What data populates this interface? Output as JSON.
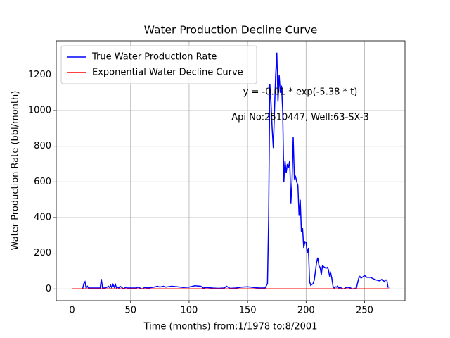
{
  "chart_data": {
    "type": "line",
    "title": "Water Production Decline Curve",
    "x_label": "Time (months) from:1/1978 to:8/2001",
    "y_label": "Water Production Rate (bbl/month)",
    "annotations": [
      "y = -0.01 * exp(-5.38 * t)",
      "Api No:2510447, Well:63-SX-3"
    ],
    "series": [
      {
        "name": "True Water Production Rate",
        "color": "#0000ff",
        "x": [
          0,
          5,
          9,
          10,
          11,
          12,
          13,
          14,
          18,
          22,
          24,
          25,
          26,
          28,
          30,
          31,
          32,
          33,
          34,
          35,
          36,
          37,
          38,
          39,
          40,
          41,
          42,
          43,
          44,
          45,
          46,
          47,
          50,
          55,
          56,
          60,
          62,
          65,
          70,
          73,
          75,
          78,
          80,
          85,
          90,
          95,
          100,
          105,
          110,
          112,
          115,
          120,
          125,
          130,
          132,
          135,
          140,
          145,
          150,
          155,
          160,
          165,
          167,
          168,
          169,
          170,
          171,
          172,
          173,
          174,
          175,
          176,
          177,
          178,
          179,
          180,
          181,
          182,
          183,
          184,
          185,
          186,
          187,
          188,
          189,
          190,
          191,
          192,
          193,
          194,
          195,
          196,
          197,
          198,
          199,
          200,
          201,
          202,
          203,
          204,
          205,
          206,
          207,
          208,
          209,
          210,
          211,
          212,
          213,
          214,
          215,
          216,
          217,
          218,
          219,
          220,
          221,
          222,
          223,
          224,
          225,
          226,
          227,
          228,
          229,
          230,
          232,
          235,
          238,
          240,
          243,
          245,
          246,
          247,
          248,
          250,
          252,
          255,
          258,
          260,
          263,
          265,
          267,
          268,
          269,
          270,
          271
        ],
        "values": [
          0,
          0,
          0,
          30,
          40,
          5,
          15,
          5,
          5,
          5,
          5,
          55,
          5,
          5,
          10,
          15,
          8,
          20,
          5,
          25,
          10,
          25,
          5,
          10,
          5,
          15,
          10,
          5,
          0,
          5,
          10,
          5,
          5,
          5,
          10,
          0,
          8,
          5,
          10,
          15,
          10,
          15,
          10,
          15,
          12,
          8,
          10,
          18,
          15,
          5,
          8,
          5,
          3,
          5,
          15,
          3,
          5,
          10,
          12,
          8,
          5,
          5,
          30,
          400,
          1150,
          1050,
          900,
          790,
          1000,
          1200,
          1325,
          1050,
          1200,
          1100,
          1140,
          1000,
          600,
          720,
          650,
          700,
          680,
          720,
          480,
          600,
          850,
          620,
          630,
          600,
          580,
          410,
          500,
          320,
          340,
          230,
          265,
          260,
          200,
          230,
          40,
          20,
          25,
          30,
          50,
          100,
          150,
          175,
          130,
          120,
          80,
          130,
          125,
          120,
          115,
          120,
          110,
          75,
          90,
          60,
          15,
          5,
          12,
          10,
          15,
          5,
          10,
          5,
          0,
          10,
          5,
          0,
          5,
          60,
          70,
          60,
          65,
          75,
          65,
          65,
          55,
          50,
          45,
          55,
          40,
          50,
          50,
          10,
          10
        ]
      },
      {
        "name": "Exponential Water Decline Curve",
        "color": "#ff0000",
        "x": [
          0,
          271
        ],
        "values": [
          0,
          0
        ]
      }
    ],
    "xlim": [
      -13.55,
      284.55
    ],
    "xticks": [
      0,
      50,
      100,
      150,
      200,
      250
    ],
    "ylim": [
      -66,
      1391
    ],
    "yticks": [
      0,
      200,
      400,
      600,
      800,
      1000,
      1200
    ],
    "grid": true,
    "legend": "upper left"
  }
}
